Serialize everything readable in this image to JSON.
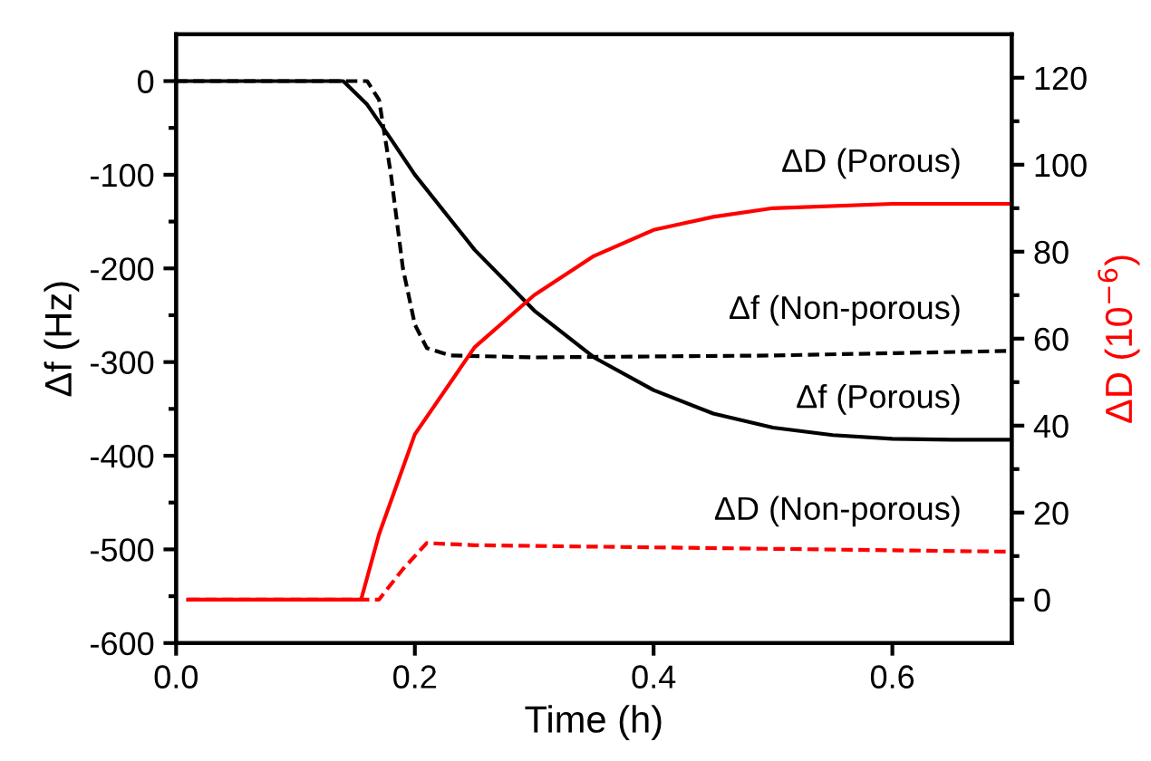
{
  "chart_data": {
    "type": "line",
    "xlabel": "Time (h)",
    "ylabel": "Δf (Hz)",
    "y2label": "ΔD (10$^{−6}$)",
    "xlim": [
      0.0,
      0.7
    ],
    "xticks": [
      {
        "value": 0.0,
        "label": "0.0"
      },
      0.2,
      0.4,
      0.6
    ],
    "ylim": [
      -600,
      50
    ],
    "yticks": [
      -600,
      -500,
      -400,
      -300,
      -200,
      -100,
      0
    ],
    "y2lim": [
      -10,
      130
    ],
    "y2ticks": [
      0,
      20,
      40,
      60,
      80,
      100,
      120
    ],
    "grid": false,
    "legend": false,
    "marker": "none",
    "series": [
      {
        "name": "Δf (Porous)",
        "color": "#000000",
        "line_style": "solid",
        "x": [
          0.0,
          0.14,
          0.16,
          0.18,
          0.2,
          0.25,
          0.3,
          0.35,
          0.4,
          0.45,
          0.5,
          0.55,
          0.6,
          0.65,
          0.7
        ],
        "values": [
          0,
          0,
          -25,
          -62,
          -100,
          -180,
          -245,
          -295,
          -330,
          -355,
          -370,
          -378,
          -382,
          -383,
          -383
        ]
      },
      {
        "name": "Δf (Non-porous)",
        "color": "#000000",
        "line_style": "dashed",
        "x": [
          0.0,
          0.16,
          0.17,
          0.18,
          0.19,
          0.2,
          0.21,
          0.23,
          0.3,
          0.5,
          0.7
        ],
        "values": [
          0,
          0,
          -20,
          -100,
          -200,
          -260,
          -285,
          -293,
          -295,
          -293,
          -288
        ]
      },
      {
        "name": "ΔD (Porous)",
        "color": "#ff0000",
        "line_style": "solid",
        "axis": "y2",
        "x": [
          0.01,
          0.155,
          0.17,
          0.2,
          0.25,
          0.3,
          0.35,
          0.4,
          0.45,
          0.5,
          0.6,
          0.7
        ],
        "values": [
          0,
          0,
          15,
          38,
          58,
          70,
          79,
          85,
          88,
          90,
          91,
          91
        ]
      },
      {
        "name": "ΔD (Non-porous)",
        "color": "#ff0000",
        "line_style": "dashed",
        "axis": "y2",
        "x": [
          0.01,
          0.17,
          0.19,
          0.21,
          0.25,
          0.4,
          0.7
        ],
        "values": [
          0,
          0,
          7,
          13,
          12.5,
          12,
          11
        ]
      }
    ]
  }
}
